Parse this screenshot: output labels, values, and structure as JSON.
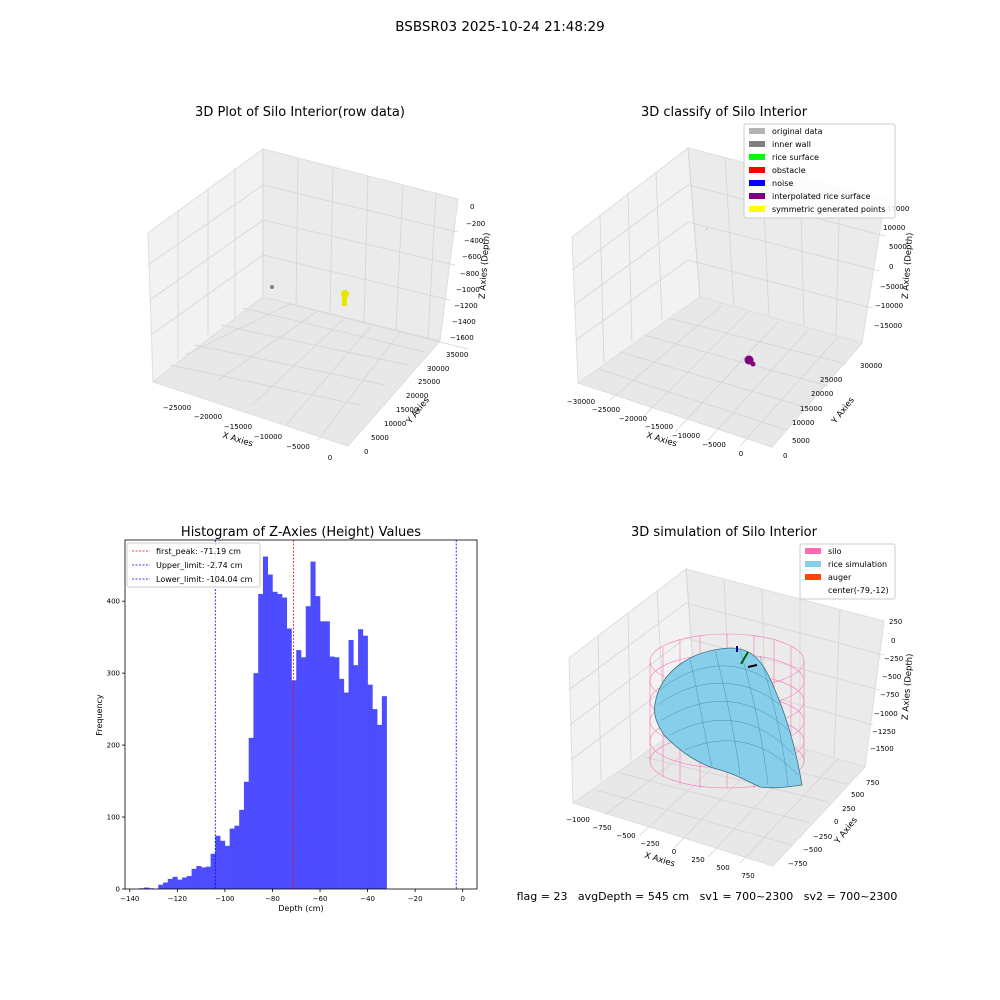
{
  "figure": {
    "suptitle": "BSBSR03 2025-10-24 21:48:29",
    "footer": "flag = 23   avgDepth = 545 cm   sv1 = 700~2300   sv2 = 700~2300"
  },
  "panels": {
    "raw": {
      "title": "3D Plot of Silo Interior(row data)",
      "x_label": "X Axies",
      "y_label": "Y Axies",
      "z_label": "Z Axies (Depth)",
      "x_ticks": [
        "−25000",
        "−20000",
        "−15000",
        "−10000",
        "−5000",
        "0"
      ],
      "y_ticks": [
        "0",
        "5000",
        "10000",
        "15000",
        "20000",
        "25000",
        "30000",
        "35000"
      ],
      "z_ticks": [
        "0",
        "−200",
        "−400",
        "−600",
        "−800",
        "−1000",
        "−1200",
        "−1400",
        "−1600"
      ]
    },
    "classify": {
      "title": "3D classify of Silo Interior",
      "x_label": "X Axies",
      "y_label": "Y Axies",
      "z_label": "Z Axies (Depth)",
      "x_ticks": [
        "−30000",
        "−25000",
        "−20000",
        "−15000",
        "−10000",
        "−5000",
        "0"
      ],
      "y_ticks": [
        "0",
        "5000",
        "10000",
        "15000",
        "20000",
        "25000",
        "30000"
      ],
      "z_ticks": [
        "15000",
        "10000",
        "5000",
        "0",
        "−5000",
        "−10000",
        "−15000"
      ],
      "legend": [
        {
          "label": "original data",
          "color": "#b3b3b3"
        },
        {
          "label": "inner wall",
          "color": "#808080"
        },
        {
          "label": "rice surface",
          "color": "#00ff00"
        },
        {
          "label": "obstacle",
          "color": "#ff0000"
        },
        {
          "label": "noise",
          "color": "#0000ff"
        },
        {
          "label": "interpolated rice surface",
          "color": "#800080"
        },
        {
          "label": "symmetric generated points",
          "color": "#ffff00"
        }
      ]
    },
    "simulation": {
      "title": "3D simulation of Silo Interior",
      "x_label": "X Axies",
      "y_label": "Y Axies",
      "z_label": "Z Axies (Depth)",
      "x_ticks": [
        "−1000",
        "−750",
        "−500",
        "−250",
        "0",
        "250",
        "500",
        "750"
      ],
      "y_ticks": [
        "−750",
        "−500",
        "−250",
        "0",
        "250",
        "500",
        "750"
      ],
      "z_ticks": [
        "250",
        "0",
        "−250",
        "−500",
        "−750",
        "−1000",
        "−1250",
        "−1500"
      ],
      "legend": [
        {
          "label": "silo",
          "color": "#ff69b4"
        },
        {
          "label": "rice simulation",
          "color": "#87ceeb"
        },
        {
          "label": "auger",
          "color": "#ff4500"
        },
        {
          "label": "center(-79,-12)",
          "color": "none"
        }
      ]
    }
  },
  "chart_data": [
    {
      "type": "heatmap",
      "title": "3D Plot of Silo Interior(row data)",
      "xlabel": "X Axies",
      "ylabel": "Y Axies",
      "zlabel": "Z Axies (Depth)",
      "xlim": [
        -28000,
        0
      ],
      "ylim": [
        0,
        37000
      ],
      "zlim": [
        -1700,
        100
      ],
      "series": [
        {
          "name": "row data",
          "color": "#ffff00"
        }
      ],
      "grid": true
    },
    {
      "type": "heatmap",
      "title": "3D classify of Silo Interior",
      "xlabel": "X Axies",
      "ylabel": "Y Axies",
      "zlabel": "Z Axies (Depth)",
      "xlim": [
        -31000,
        0
      ],
      "ylim": [
        0,
        33000
      ],
      "zlim": [
        -16000,
        20000
      ],
      "legend_position": "top-right",
      "grid": true
    },
    {
      "type": "bar",
      "title": "Histogram of Z-Axies (Height) Values",
      "xlabel": "Depth (cm)",
      "ylabel": "Frequency",
      "xlim": [
        -142,
        6
      ],
      "ylim": [
        0,
        485
      ],
      "bin_width": 2,
      "bin_starts": [
        -140,
        -138,
        -136,
        -134,
        -132,
        -130,
        -128,
        -126,
        -124,
        -122,
        -120,
        -118,
        -116,
        -114,
        -112,
        -110,
        -108,
        -106,
        -104,
        -102,
        -100,
        -98,
        -96,
        -94,
        -92,
        -90,
        -88,
        -86,
        -84,
        -82,
        -80,
        -78,
        -76,
        -74,
        -72,
        -70,
        -68,
        -66,
        -64,
        -62,
        -60,
        -58,
        -56,
        -54,
        -52,
        -50,
        -48,
        -46,
        -44,
        -42,
        -40,
        -38,
        -36,
        -34,
        -32,
        -30,
        -28,
        -26,
        -24,
        -22,
        -20,
        -18,
        -16,
        -14,
        -12,
        -10,
        -8,
        -6,
        -4,
        -2,
        0
      ],
      "values": [
        0,
        0,
        1,
        2,
        1,
        0,
        6,
        9,
        14,
        17,
        13,
        16,
        18,
        28,
        32,
        30,
        31,
        49,
        74,
        67,
        60,
        84,
        88,
        110,
        149,
        210,
        300,
        410,
        462,
        437,
        413,
        410,
        405,
        362,
        290,
        332,
        322,
        393,
        455,
        407,
        372,
        372,
        323,
        322,
        292,
        273,
        346,
        311,
        361,
        352,
        284,
        250,
        228,
        268,
        0,
        0,
        0,
        0,
        0,
        0,
        0,
        0,
        0,
        0,
        0,
        0,
        0,
        0,
        0,
        0,
        0
      ],
      "bar_color": "#4d4dff",
      "vlines": [
        {
          "label": "first_peak: -71.19 cm",
          "x": -71.19,
          "color": "#ff0000"
        },
        {
          "label": "Upper_limit: -2.74 cm",
          "x": -2.74,
          "color": "#0000ff"
        },
        {
          "label": "Lower_limit: -104.04 cm",
          "x": -104.04,
          "color": "#0000ff"
        }
      ],
      "x_ticks": [
        -140,
        -120,
        -100,
        -80,
        -60,
        -40,
        -20,
        0
      ],
      "y_ticks": [
        0,
        100,
        200,
        300,
        400
      ],
      "legend_position": "top-left"
    },
    {
      "type": "heatmap",
      "title": "3D simulation of Silo Interior",
      "xlabel": "X Axies",
      "ylabel": "Y Axies",
      "zlabel": "Z Axies (Depth)",
      "xlim": [
        -1100,
        850
      ],
      "ylim": [
        -850,
        850
      ],
      "zlim": [
        -1600,
        350
      ],
      "center": [
        -79,
        -12
      ],
      "legend_position": "top-right",
      "grid": true
    }
  ]
}
